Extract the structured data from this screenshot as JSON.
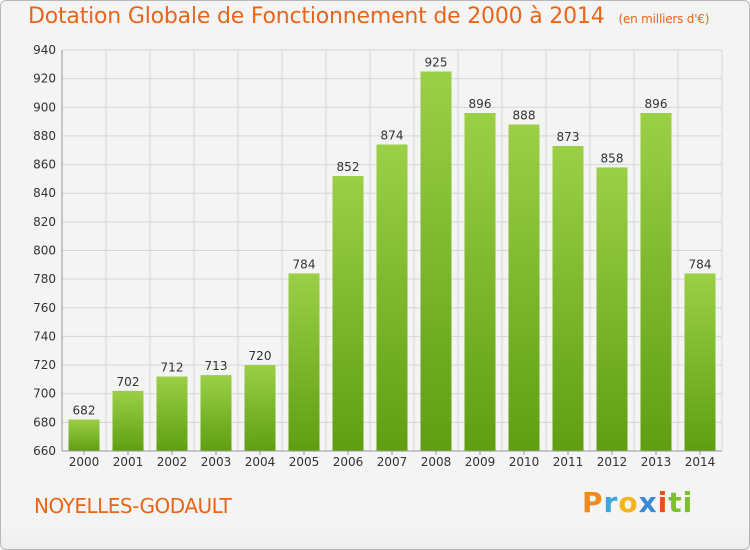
{
  "title": "Dotation Globale de Fonctionnement de 2000 à 2014",
  "unit": "(en milliers d'€)",
  "commune": "NOYELLES-GODAULT",
  "logo": [
    "P",
    "r",
    "o",
    "x",
    "i",
    "ti"
  ],
  "colors": {
    "bar_light": "#9bd046",
    "bar_dark": "#5f9e12",
    "title": "#e8651a",
    "grid": "#d6d6d6"
  },
  "chart_data": {
    "type": "bar",
    "title": "Dotation Globale de Fonctionnement de 2000 à 2014",
    "subtitle": "(en milliers d'€)",
    "categories": [
      "2000",
      "2001",
      "2002",
      "2003",
      "2004",
      "2005",
      "2006",
      "2007",
      "2008",
      "2009",
      "2010",
      "2011",
      "2012",
      "2013",
      "2014"
    ],
    "values": [
      682,
      702,
      712,
      713,
      720,
      784,
      852,
      874,
      925,
      896,
      888,
      873,
      858,
      896,
      784
    ],
    "ylim": [
      660,
      940
    ],
    "yticks": [
      660,
      680,
      700,
      720,
      740,
      760,
      780,
      800,
      820,
      840,
      860,
      880,
      900,
      920,
      940
    ],
    "grid": true
  }
}
